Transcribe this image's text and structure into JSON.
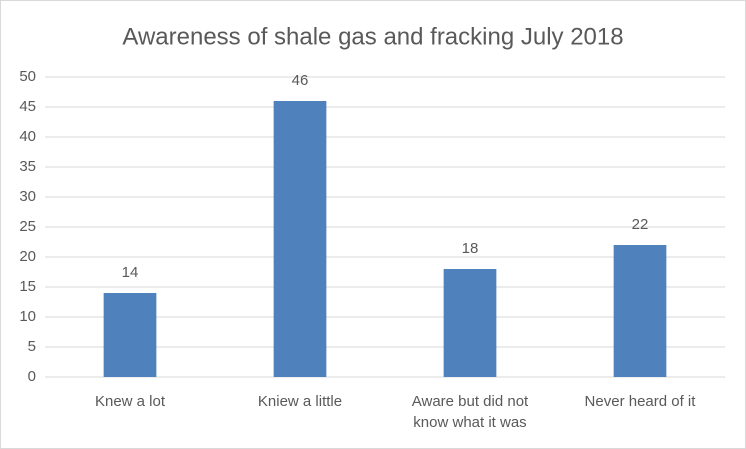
{
  "chart_data": {
    "type": "bar",
    "title": "Awareness of shale gas and fracking July 2018",
    "categories": [
      "Knew a lot",
      "Kniew a little",
      "Aware but did not know what it was",
      "Never heard of it"
    ],
    "values": [
      14,
      46,
      18,
      22
    ],
    "color": "#4f81bd",
    "ylim": [
      0,
      50
    ],
    "yticks": [
      0,
      5,
      10,
      15,
      20,
      25,
      30,
      35,
      40,
      45,
      50
    ],
    "grid": true
  }
}
